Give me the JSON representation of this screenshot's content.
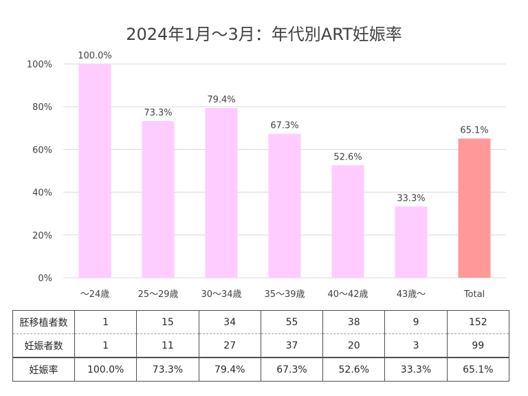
{
  "chart_data": {
    "type": "bar",
    "title": "2024年1月～3月：年代別ART妊娠率",
    "categories": [
      "～24歳",
      "25～29歳",
      "30～34歳",
      "35～39歳",
      "40～42歳",
      "43歳～",
      "Total"
    ],
    "values": [
      100.0,
      73.3,
      79.4,
      67.3,
      52.6,
      33.3,
      65.1
    ],
    "data_labels": [
      "100.0%",
      "73.3%",
      "79.4%",
      "67.3%",
      "52.6%",
      "33.3%",
      "65.1%"
    ],
    "ylim": [
      0,
      100
    ],
    "yticks": [
      0,
      20,
      40,
      60,
      80,
      100
    ],
    "ytick_labels": [
      "0%",
      "20%",
      "40%",
      "60%",
      "80%",
      "100%"
    ],
    "grid": true,
    "colors": {
      "bar": "#ffccff",
      "total_bar": "#ff9999",
      "grid": "#d9d9d9",
      "text": "#404040"
    }
  },
  "table": {
    "rows": [
      {
        "label": "胚移植者数",
        "cells": [
          "1",
          "15",
          "34",
          "55",
          "38",
          "9",
          "152"
        ]
      },
      {
        "label": "妊娠者数",
        "cells": [
          "1",
          "11",
          "27",
          "37",
          "20",
          "3",
          "99"
        ]
      },
      {
        "label": "妊娠率",
        "cells": [
          "100.0%",
          "73.3%",
          "79.4%",
          "67.3%",
          "52.6%",
          "33.3%",
          "65.1%"
        ]
      }
    ]
  }
}
